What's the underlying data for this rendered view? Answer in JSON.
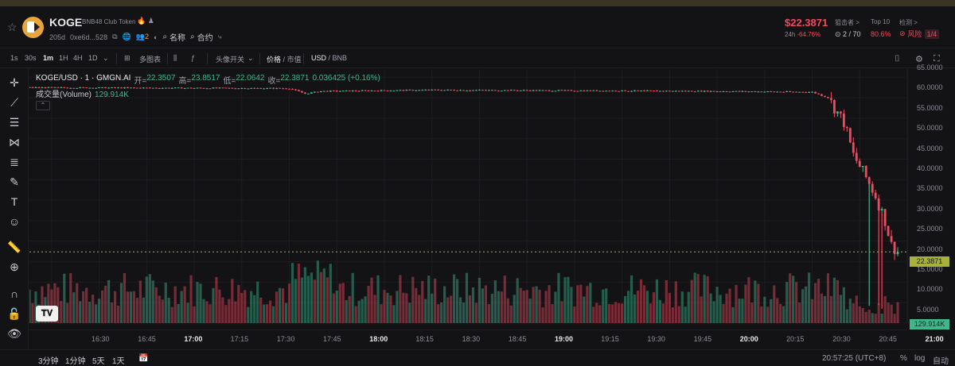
{
  "token": {
    "name": "KOGE",
    "full_name": "BNB48 Club Token",
    "age": "205d",
    "address": "0xe6d...528",
    "holders_badge": "2",
    "name_link": "名称",
    "contract_link": "合约"
  },
  "header_stats": {
    "price": "$22.3871",
    "change_label": "24h",
    "change": "-64.76%",
    "snipers_label": "狙击者 >",
    "snipers_value": "2 / 70",
    "top10_label": "Top 10",
    "top10_value": "80.6%",
    "check_label": "检测 >",
    "risk_label": "风险",
    "risk_count": "1/4"
  },
  "toolbar": {
    "intervals": [
      "1s",
      "30s",
      "1m",
      "1H",
      "4H",
      "1D"
    ],
    "active_interval": "1m",
    "multi_chart": "多图表",
    "avatar_toggle": "头像开关",
    "price_label": "价格",
    "mcap_label": "市值",
    "usd_label": "USD",
    "bnb_label": "BNB"
  },
  "legend": {
    "pair": "KOGE/USD · 1 · GMGN.AI",
    "open_k": "开=",
    "open_v": "22.3507",
    "high_k": "高=",
    "high_v": "23.8517",
    "low_k": "低=",
    "low_v": "22.0642",
    "close_k": "收=",
    "close_v": "22.3871",
    "delta": "0.036425 (+0.16%)",
    "volume_label": "成交量(Volume)",
    "volume_value": "129.914K",
    "tv_logo": "TV"
  },
  "price_axis": [
    "65.0000",
    "60.0000",
    "55.0000",
    "50.0000",
    "45.0000",
    "40.0000",
    "35.0000",
    "30.0000",
    "25.0000",
    "20.0000",
    "15.0000",
    "10.0000",
    "5.0000"
  ],
  "current_price_tag": "22.3871",
  "volume_tag": "129.914K",
  "time_axis": [
    {
      "t": "16:30",
      "major": false
    },
    {
      "t": "16:45",
      "major": false
    },
    {
      "t": "17:00",
      "major": true
    },
    {
      "t": "17:15",
      "major": false
    },
    {
      "t": "17:30",
      "major": false
    },
    {
      "t": "17:45",
      "major": false
    },
    {
      "t": "18:00",
      "major": true
    },
    {
      "t": "18:15",
      "major": false
    },
    {
      "t": "18:30",
      "major": false
    },
    {
      "t": "18:45",
      "major": false
    },
    {
      "t": "19:00",
      "major": true
    },
    {
      "t": "19:15",
      "major": false
    },
    {
      "t": "19:30",
      "major": false
    },
    {
      "t": "19:45",
      "major": false
    },
    {
      "t": "20:00",
      "major": true
    },
    {
      "t": "20:15",
      "major": false
    },
    {
      "t": "20:30",
      "major": false
    },
    {
      "t": "20:45",
      "major": false
    },
    {
      "t": "21:00",
      "major": true
    }
  ],
  "bottom_bar": {
    "ranges": [
      "3分钟",
      "1分钟",
      "5天",
      "1天"
    ],
    "clock": "20:57:25 (UTC+8)",
    "percent": "%",
    "log": "log",
    "auto": "自动"
  },
  "colors": {
    "up": "#3fb68b",
    "down": "#f2495e",
    "price_line": "#a8b23a"
  },
  "chart_data": {
    "type": "candlestick",
    "ylim": [
      5,
      67
    ],
    "x_range": [
      "16:23",
      "21:00"
    ],
    "price_path": [
      {
        "t": "16:23",
        "p": 62.5
      },
      {
        "t": "17:45",
        "p": 62.3
      },
      {
        "t": "17:50",
        "p": 61.0
      },
      {
        "t": "17:55",
        "p": 61.6
      },
      {
        "t": "18:30",
        "p": 61.9
      },
      {
        "t": "19:30",
        "p": 61.7
      },
      {
        "t": "20:00",
        "p": 61.6
      },
      {
        "t": "20:30",
        "p": 61.4
      },
      {
        "t": "20:35",
        "p": 60.0
      },
      {
        "t": "20:40",
        "p": 54.0
      },
      {
        "t": "20:43",
        "p": 46.0
      },
      {
        "t": "20:47",
        "p": 40.5
      },
      {
        "t": "20:50",
        "p": 36.0
      },
      {
        "t": "20:53",
        "p": 30.0
      },
      {
        "t": "20:55",
        "p": 24.0
      },
      {
        "t": "20:57",
        "p": 22.39
      }
    ],
    "low_wicks": [
      {
        "t": "20:48",
        "low": 9.2
      },
      {
        "t": "20:51",
        "low": 9.4
      },
      {
        "t": "20:52",
        "low": 8.5
      }
    ],
    "current_price": 22.3871,
    "volume_current": "129.914K"
  }
}
